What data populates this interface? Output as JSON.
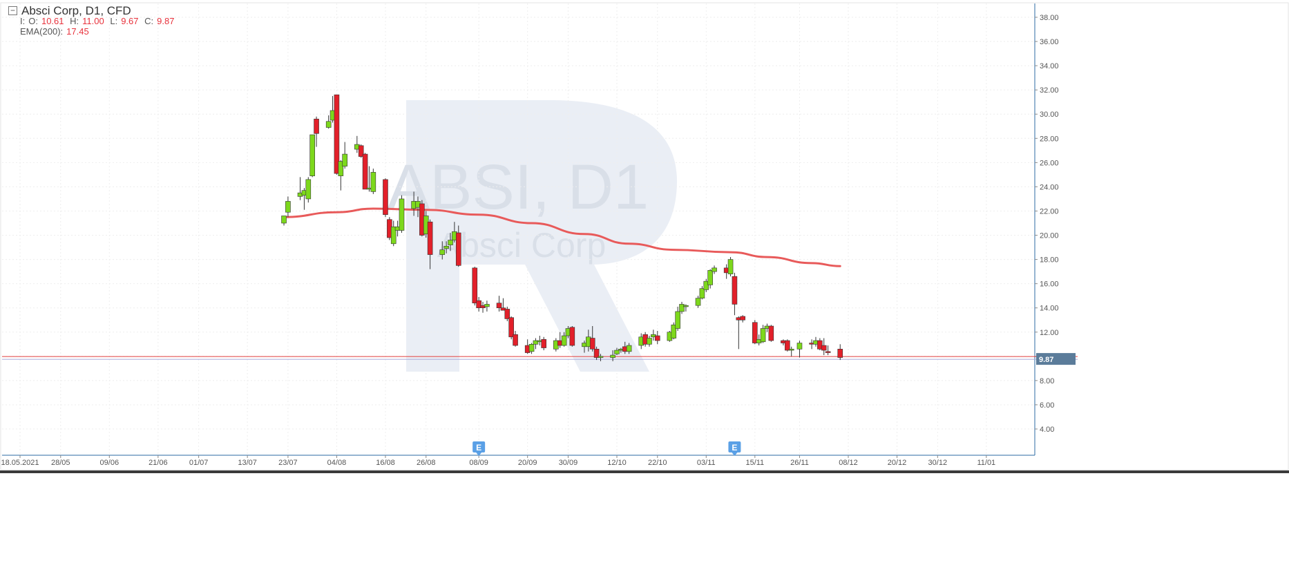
{
  "legend": {
    "symbol_line": "Absci Corp,  D1,  CFD",
    "ohlc_prefix": "I:",
    "open_label": "O:",
    "open": "10.61",
    "high_label": "H:",
    "high": "11.00",
    "low_label": "L:",
    "low": "9.67",
    "close_label": "C:",
    "close": "9.87",
    "ema_label": "EMA(200):",
    "ema": "17.45"
  },
  "watermark": {
    "ticker": "ABSI, D1",
    "name": "Absci Corp"
  },
  "price_badge": "9.87",
  "event_marker_label": "E",
  "chart_data": {
    "type": "candlestick",
    "y_ticks": [
      4,
      6,
      8,
      10,
      12,
      14,
      16,
      18,
      20,
      22,
      24,
      26,
      28,
      30,
      32,
      34,
      36,
      38
    ],
    "ylim": [
      2.4,
      39.0
    ],
    "x_tick_labels": [
      {
        "date": "2021-05-18",
        "label": "18.05.2021"
      },
      {
        "date": "2021-05-28",
        "label": "28/05"
      },
      {
        "date": "2021-06-09",
        "label": "09/06"
      },
      {
        "date": "2021-06-21",
        "label": "21/06"
      },
      {
        "date": "2021-07-01",
        "label": "01/07"
      },
      {
        "date": "2021-07-13",
        "label": "13/07"
      },
      {
        "date": "2021-07-23",
        "label": "23/07"
      },
      {
        "date": "2021-08-04",
        "label": "04/08"
      },
      {
        "date": "2021-08-16",
        "label": "16/08"
      },
      {
        "date": "2021-08-26",
        "label": "26/08"
      },
      {
        "date": "2021-09-08",
        "label": "08/09"
      },
      {
        "date": "2021-09-20",
        "label": "20/09"
      },
      {
        "date": "2021-09-30",
        "label": "30/09"
      },
      {
        "date": "2021-10-12",
        "label": "12/10"
      },
      {
        "date": "2021-10-22",
        "label": "22/10"
      },
      {
        "date": "2021-11-03",
        "label": "03/11"
      },
      {
        "date": "2021-11-15",
        "label": "15/11"
      },
      {
        "date": "2021-11-26",
        "label": "26/11"
      },
      {
        "date": "2021-12-08",
        "label": "08/12"
      },
      {
        "date": "2021-12-20",
        "label": "20/12"
      },
      {
        "date": "2021-12-30",
        "label": "30/12"
      },
      {
        "date": "2022-01-11",
        "label": "11/01"
      }
    ],
    "candles": [
      {
        "date": "2021-07-22",
        "o": 21.0,
        "h": 21.6,
        "l": 20.8,
        "c": 21.6
      },
      {
        "date": "2021-07-23",
        "o": 21.9,
        "h": 23.2,
        "l": 21.5,
        "c": 22.8
      },
      {
        "date": "2021-07-26",
        "o": 23.2,
        "h": 24.8,
        "l": 22.9,
        "c": 23.5
      },
      {
        "date": "2021-07-27",
        "o": 23.3,
        "h": 23.9,
        "l": 22.1,
        "c": 23.7
      },
      {
        "date": "2021-07-28",
        "o": 23.0,
        "h": 24.8,
        "l": 22.7,
        "c": 24.6
      },
      {
        "date": "2021-07-29",
        "o": 24.9,
        "h": 28.2,
        "l": 24.8,
        "c": 28.3
      },
      {
        "date": "2021-07-30",
        "o": 29.6,
        "h": 29.8,
        "l": 27.3,
        "c": 28.4
      },
      {
        "date": "2021-08-02",
        "o": 28.9,
        "h": 29.9,
        "l": 28.8,
        "c": 29.4
      },
      {
        "date": "2021-08-03",
        "o": 29.5,
        "h": 31.5,
        "l": 29.3,
        "c": 30.3
      },
      {
        "date": "2021-08-04",
        "o": 31.6,
        "h": 31.6,
        "l": 25.0,
        "c": 25.1
      },
      {
        "date": "2021-08-05",
        "o": 24.9,
        "h": 26.2,
        "l": 23.7,
        "c": 26.1
      },
      {
        "date": "2021-08-06",
        "o": 25.7,
        "h": 27.7,
        "l": 25.5,
        "c": 26.7
      },
      {
        "date": "2021-08-09",
        "o": 27.1,
        "h": 28.2,
        "l": 26.8,
        "c": 27.5
      },
      {
        "date": "2021-08-10",
        "o": 27.4,
        "h": 27.5,
        "l": 26.4,
        "c": 26.5
      },
      {
        "date": "2021-08-11",
        "o": 26.7,
        "h": 26.8,
        "l": 23.8,
        "c": 23.8
      },
      {
        "date": "2021-08-12",
        "o": 23.8,
        "h": 25.7,
        "l": 23.6,
        "c": 23.9
      },
      {
        "date": "2021-08-13",
        "o": 23.6,
        "h": 25.5,
        "l": 23.4,
        "c": 25.2
      },
      {
        "date": "2021-08-16",
        "o": 24.6,
        "h": 24.7,
        "l": 21.5,
        "c": 21.7
      },
      {
        "date": "2021-08-17",
        "o": 21.3,
        "h": 21.5,
        "l": 19.6,
        "c": 19.8
      },
      {
        "date": "2021-08-18",
        "o": 19.3,
        "h": 21.2,
        "l": 19.1,
        "c": 20.7
      },
      {
        "date": "2021-08-19",
        "o": 20.4,
        "h": 21.2,
        "l": 19.9,
        "c": 20.7
      },
      {
        "date": "2021-08-20",
        "o": 20.4,
        "h": 23.3,
        "l": 20.2,
        "c": 23.0
      },
      {
        "date": "2021-08-23",
        "o": 22.2,
        "h": 23.6,
        "l": 21.6,
        "c": 22.8
      },
      {
        "date": "2021-08-24",
        "o": 22.3,
        "h": 23.2,
        "l": 21.5,
        "c": 22.8
      },
      {
        "date": "2021-08-25",
        "o": 22.6,
        "h": 22.9,
        "l": 19.9,
        "c": 20.0
      },
      {
        "date": "2021-08-26",
        "o": 20.1,
        "h": 22.0,
        "l": 19.8,
        "c": 21.6
      },
      {
        "date": "2021-08-27",
        "o": 21.1,
        "h": 21.3,
        "l": 17.2,
        "c": 18.4
      },
      {
        "date": "2021-08-30",
        "o": 18.4,
        "h": 19.5,
        "l": 18.0,
        "c": 18.8
      },
      {
        "date": "2021-08-31",
        "o": 18.9,
        "h": 19.5,
        "l": 18.5,
        "c": 19.1
      },
      {
        "date": "2021-09-01",
        "o": 19.2,
        "h": 20.2,
        "l": 18.7,
        "c": 19.6
      },
      {
        "date": "2021-09-02",
        "o": 19.6,
        "h": 21.1,
        "l": 19.4,
        "c": 20.3
      },
      {
        "date": "2021-09-03",
        "o": 20.2,
        "h": 20.8,
        "l": 17.4,
        "c": 17.5
      },
      {
        "date": "2021-09-07",
        "o": 17.3,
        "h": 17.4,
        "l": 14.2,
        "c": 14.4
      },
      {
        "date": "2021-09-08",
        "o": 14.6,
        "h": 14.9,
        "l": 13.7,
        "c": 14.0
      },
      {
        "date": "2021-09-09",
        "o": 14.2,
        "h": 14.5,
        "l": 13.6,
        "c": 14.0
      },
      {
        "date": "2021-09-10",
        "o": 14.1,
        "h": 14.6,
        "l": 13.7,
        "c": 14.3
      },
      {
        "date": "2021-09-13",
        "o": 14.4,
        "h": 15.0,
        "l": 13.7,
        "c": 14.0
      },
      {
        "date": "2021-09-14",
        "o": 14.0,
        "h": 14.8,
        "l": 13.8,
        "c": 13.8
      },
      {
        "date": "2021-09-15",
        "o": 13.9,
        "h": 14.1,
        "l": 12.9,
        "c": 13.1
      },
      {
        "date": "2021-09-16",
        "o": 13.2,
        "h": 13.3,
        "l": 11.4,
        "c": 11.6
      },
      {
        "date": "2021-09-17",
        "o": 11.8,
        "h": 12.1,
        "l": 10.8,
        "c": 10.9
      },
      {
        "date": "2021-09-20",
        "o": 10.9,
        "h": 11.4,
        "l": 10.2,
        "c": 10.3
      },
      {
        "date": "2021-09-21",
        "o": 10.4,
        "h": 11.1,
        "l": 10.2,
        "c": 11.0
      },
      {
        "date": "2021-09-22",
        "o": 11.0,
        "h": 11.5,
        "l": 10.6,
        "c": 11.3
      },
      {
        "date": "2021-09-23",
        "o": 11.2,
        "h": 11.7,
        "l": 10.9,
        "c": 11.3
      },
      {
        "date": "2021-09-24",
        "o": 11.4,
        "h": 11.6,
        "l": 10.5,
        "c": 10.7
      },
      {
        "date": "2021-09-27",
        "o": 10.6,
        "h": 11.5,
        "l": 10.4,
        "c": 11.3
      },
      {
        "date": "2021-09-28",
        "o": 11.3,
        "h": 12.0,
        "l": 10.7,
        "c": 10.9
      },
      {
        "date": "2021-09-29",
        "o": 10.9,
        "h": 12.0,
        "l": 10.8,
        "c": 11.7
      },
      {
        "date": "2021-09-30",
        "o": 11.7,
        "h": 12.5,
        "l": 11.5,
        "c": 12.3
      },
      {
        "date": "2021-10-01",
        "o": 12.4,
        "h": 12.5,
        "l": 10.8,
        "c": 10.9
      },
      {
        "date": "2021-10-04",
        "o": 10.8,
        "h": 11.3,
        "l": 10.3,
        "c": 11.1
      },
      {
        "date": "2021-10-05",
        "o": 10.8,
        "h": 12.2,
        "l": 10.4,
        "c": 11.6
      },
      {
        "date": "2021-10-06",
        "o": 11.5,
        "h": 12.5,
        "l": 10.4,
        "c": 10.6
      },
      {
        "date": "2021-10-07",
        "o": 10.6,
        "h": 10.8,
        "l": 9.7,
        "c": 9.9
      },
      {
        "date": "2021-10-08",
        "o": 9.9,
        "h": 10.2,
        "l": 9.6,
        "c": 10.0
      },
      {
        "date": "2021-10-11",
        "o": 9.9,
        "h": 10.5,
        "l": 9.6,
        "c": 10.1
      },
      {
        "date": "2021-10-12",
        "o": 10.2,
        "h": 10.7,
        "l": 10.1,
        "c": 10.5
      },
      {
        "date": "2021-10-13",
        "o": 10.5,
        "h": 10.7,
        "l": 10.3,
        "c": 10.6
      },
      {
        "date": "2021-10-14",
        "o": 10.8,
        "h": 11.2,
        "l": 10.2,
        "c": 10.4
      },
      {
        "date": "2021-10-15",
        "o": 10.4,
        "h": 11.1,
        "l": 10.2,
        "c": 10.9
      },
      {
        "date": "2021-10-18",
        "o": 10.9,
        "h": 11.9,
        "l": 10.6,
        "c": 11.6
      },
      {
        "date": "2021-10-19",
        "o": 11.8,
        "h": 12.0,
        "l": 10.8,
        "c": 11.0
      },
      {
        "date": "2021-10-20",
        "o": 11.0,
        "h": 11.7,
        "l": 10.8,
        "c": 11.5
      },
      {
        "date": "2021-10-21",
        "o": 11.6,
        "h": 12.2,
        "l": 11.3,
        "c": 11.8
      },
      {
        "date": "2021-10-22",
        "o": 11.7,
        "h": 12.1,
        "l": 11.0,
        "c": 11.3
      },
      {
        "date": "2021-10-25",
        "o": 11.3,
        "h": 12.1,
        "l": 11.2,
        "c": 12.0
      },
      {
        "date": "2021-10-26",
        "o": 11.5,
        "h": 12.8,
        "l": 11.4,
        "c": 12.6
      },
      {
        "date": "2021-10-27",
        "o": 12.3,
        "h": 14.1,
        "l": 12.1,
        "c": 13.7
      },
      {
        "date": "2021-10-28",
        "o": 13.7,
        "h": 14.5,
        "l": 13.5,
        "c": 14.3
      },
      {
        "date": "2021-10-29",
        "o": 14.1,
        "h": 14.3,
        "l": 13.7,
        "c": 14.2
      },
      {
        "date": "2021-11-01",
        "o": 14.2,
        "h": 15.0,
        "l": 14.0,
        "c": 14.8
      },
      {
        "date": "2021-11-02",
        "o": 14.8,
        "h": 15.8,
        "l": 14.7,
        "c": 15.6
      },
      {
        "date": "2021-11-03",
        "o": 15.5,
        "h": 16.4,
        "l": 15.3,
        "c": 16.2
      },
      {
        "date": "2021-11-04",
        "o": 15.9,
        "h": 17.2,
        "l": 15.6,
        "c": 17.1
      },
      {
        "date": "2021-11-05",
        "o": 17.0,
        "h": 17.5,
        "l": 16.8,
        "c": 17.3
      },
      {
        "date": "2021-11-08",
        "o": 17.3,
        "h": 17.6,
        "l": 16.4,
        "c": 16.9
      },
      {
        "date": "2021-11-09",
        "o": 16.8,
        "h": 18.2,
        "l": 16.6,
        "c": 18.0
      },
      {
        "date": "2021-11-10",
        "o": 16.6,
        "h": 16.9,
        "l": 13.4,
        "c": 14.3
      },
      {
        "date": "2021-11-11",
        "o": 13.2,
        "h": 13.3,
        "l": 10.6,
        "c": 13.0
      },
      {
        "date": "2021-11-12",
        "o": 13.3,
        "h": 13.4,
        "l": 12.8,
        "c": 13.0
      },
      {
        "date": "2021-11-15",
        "o": 12.8,
        "h": 13.0,
        "l": 11.0,
        "c": 11.1
      },
      {
        "date": "2021-11-16",
        "o": 11.1,
        "h": 11.8,
        "l": 10.9,
        "c": 11.4
      },
      {
        "date": "2021-11-17",
        "o": 11.2,
        "h": 12.6,
        "l": 11.1,
        "c": 12.3
      },
      {
        "date": "2021-11-18",
        "o": 12.3,
        "h": 12.7,
        "l": 12.0,
        "c": 12.5
      },
      {
        "date": "2021-11-19",
        "o": 12.5,
        "h": 12.6,
        "l": 11.2,
        "c": 11.3
      },
      {
        "date": "2021-11-22",
        "o": 11.3,
        "h": 11.4,
        "l": 10.9,
        "c": 11.1
      },
      {
        "date": "2021-11-23",
        "o": 11.3,
        "h": 11.4,
        "l": 10.4,
        "c": 10.5
      },
      {
        "date": "2021-11-24",
        "o": 10.5,
        "h": 10.8,
        "l": 10.0,
        "c": 10.6
      },
      {
        "date": "2021-11-26",
        "o": 10.6,
        "h": 11.3,
        "l": 9.9,
        "c": 11.1
      },
      {
        "date": "2021-11-29",
        "o": 11.1,
        "h": 11.4,
        "l": 10.6,
        "c": 11.0
      },
      {
        "date": "2021-11-30",
        "o": 11.0,
        "h": 11.6,
        "l": 10.8,
        "c": 11.3
      },
      {
        "date": "2021-12-01",
        "o": 11.3,
        "h": 11.5,
        "l": 10.5,
        "c": 10.6
      },
      {
        "date": "2021-12-02",
        "o": 10.9,
        "h": 11.5,
        "l": 10.1,
        "c": 10.5
      },
      {
        "date": "2021-12-03",
        "o": 10.4,
        "h": 10.9,
        "l": 10.1,
        "c": 10.3
      },
      {
        "date": "2021-12-06",
        "o": 10.6,
        "h": 11.0,
        "l": 9.7,
        "c": 9.9
      }
    ],
    "ema_200": [
      {
        "date": "2021-07-22",
        "value": 21.5
      },
      {
        "date": "2021-08-04",
        "value": 21.9
      },
      {
        "date": "2021-08-13",
        "value": 22.2
      },
      {
        "date": "2021-08-26",
        "value": 22.1
      },
      {
        "date": "2021-09-08",
        "value": 21.7
      },
      {
        "date": "2021-09-21",
        "value": 21.0
      },
      {
        "date": "2021-10-04",
        "value": 20.1
      },
      {
        "date": "2021-10-15",
        "value": 19.3
      },
      {
        "date": "2021-10-26",
        "value": 18.8
      },
      {
        "date": "2021-11-09",
        "value": 18.6
      },
      {
        "date": "2021-11-18",
        "value": 18.2
      },
      {
        "date": "2021-11-29",
        "value": 17.7
      },
      {
        "date": "2021-12-06",
        "value": 17.45
      }
    ],
    "last_price": 9.87,
    "earnings_events": [
      "2021-09-08",
      "2021-11-10"
    ],
    "colors": {
      "up": "#7dd81c",
      "down": "#e2202a",
      "ema": "#e85a5a",
      "price_line": "#e03c3c",
      "badge": "#5b7c9a",
      "event": "#5aa0e6"
    }
  }
}
